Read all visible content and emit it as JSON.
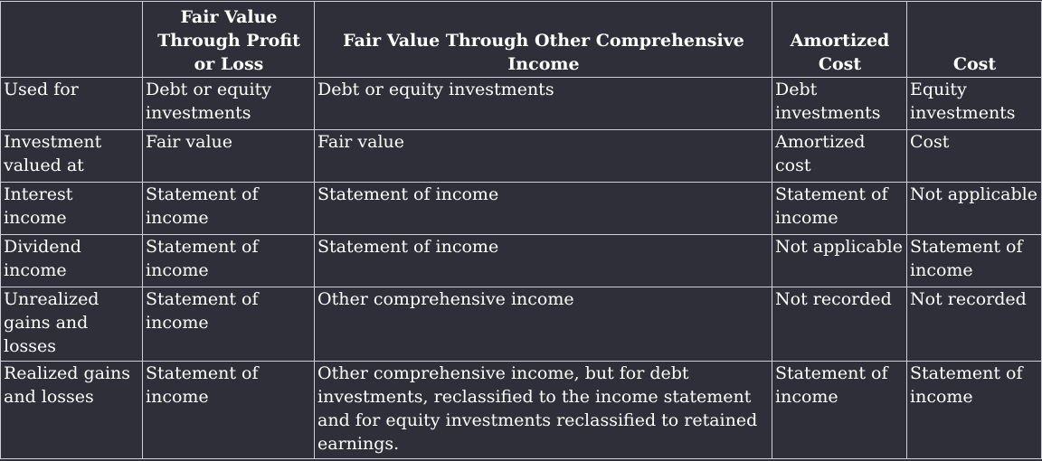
{
  "table": {
    "headers": [
      "",
      "Fair Value Through Profit or Loss",
      "Fair Value Through Other Comprehensive Income",
      "Amortized Cost",
      "Cost"
    ],
    "rows": [
      [
        "Used for",
        "Debt or equity investments",
        "Debt or equity investments",
        "Debt investments",
        "Equity investments"
      ],
      [
        "Investment valued at",
        "Fair value",
        "Fair value",
        "Amortized cost",
        "Cost"
      ],
      [
        "Interest income",
        "Statement of income",
        "Statement of income",
        "Statement of income",
        "Not applicable"
      ],
      [
        "Dividend income",
        "Statement of income",
        "Statement of income",
        "Not applicable",
        "Statement of income"
      ],
      [
        "Unrealized gains and losses",
        "Statement of income",
        "Other comprehensive income",
        "Not recorded",
        "Not recorded"
      ],
      [
        "Realized gains and losses",
        "Statement of income",
        "Other comprehensive income, but for debt investments, reclassified to the income statement and for equity investments reclassified to retained earnings.",
        "Statement of income",
        "Statement of income"
      ]
    ]
  },
  "colors": {
    "background": "#2f2f3a",
    "text": "#ffffff",
    "border": "#cfcfd6"
  }
}
